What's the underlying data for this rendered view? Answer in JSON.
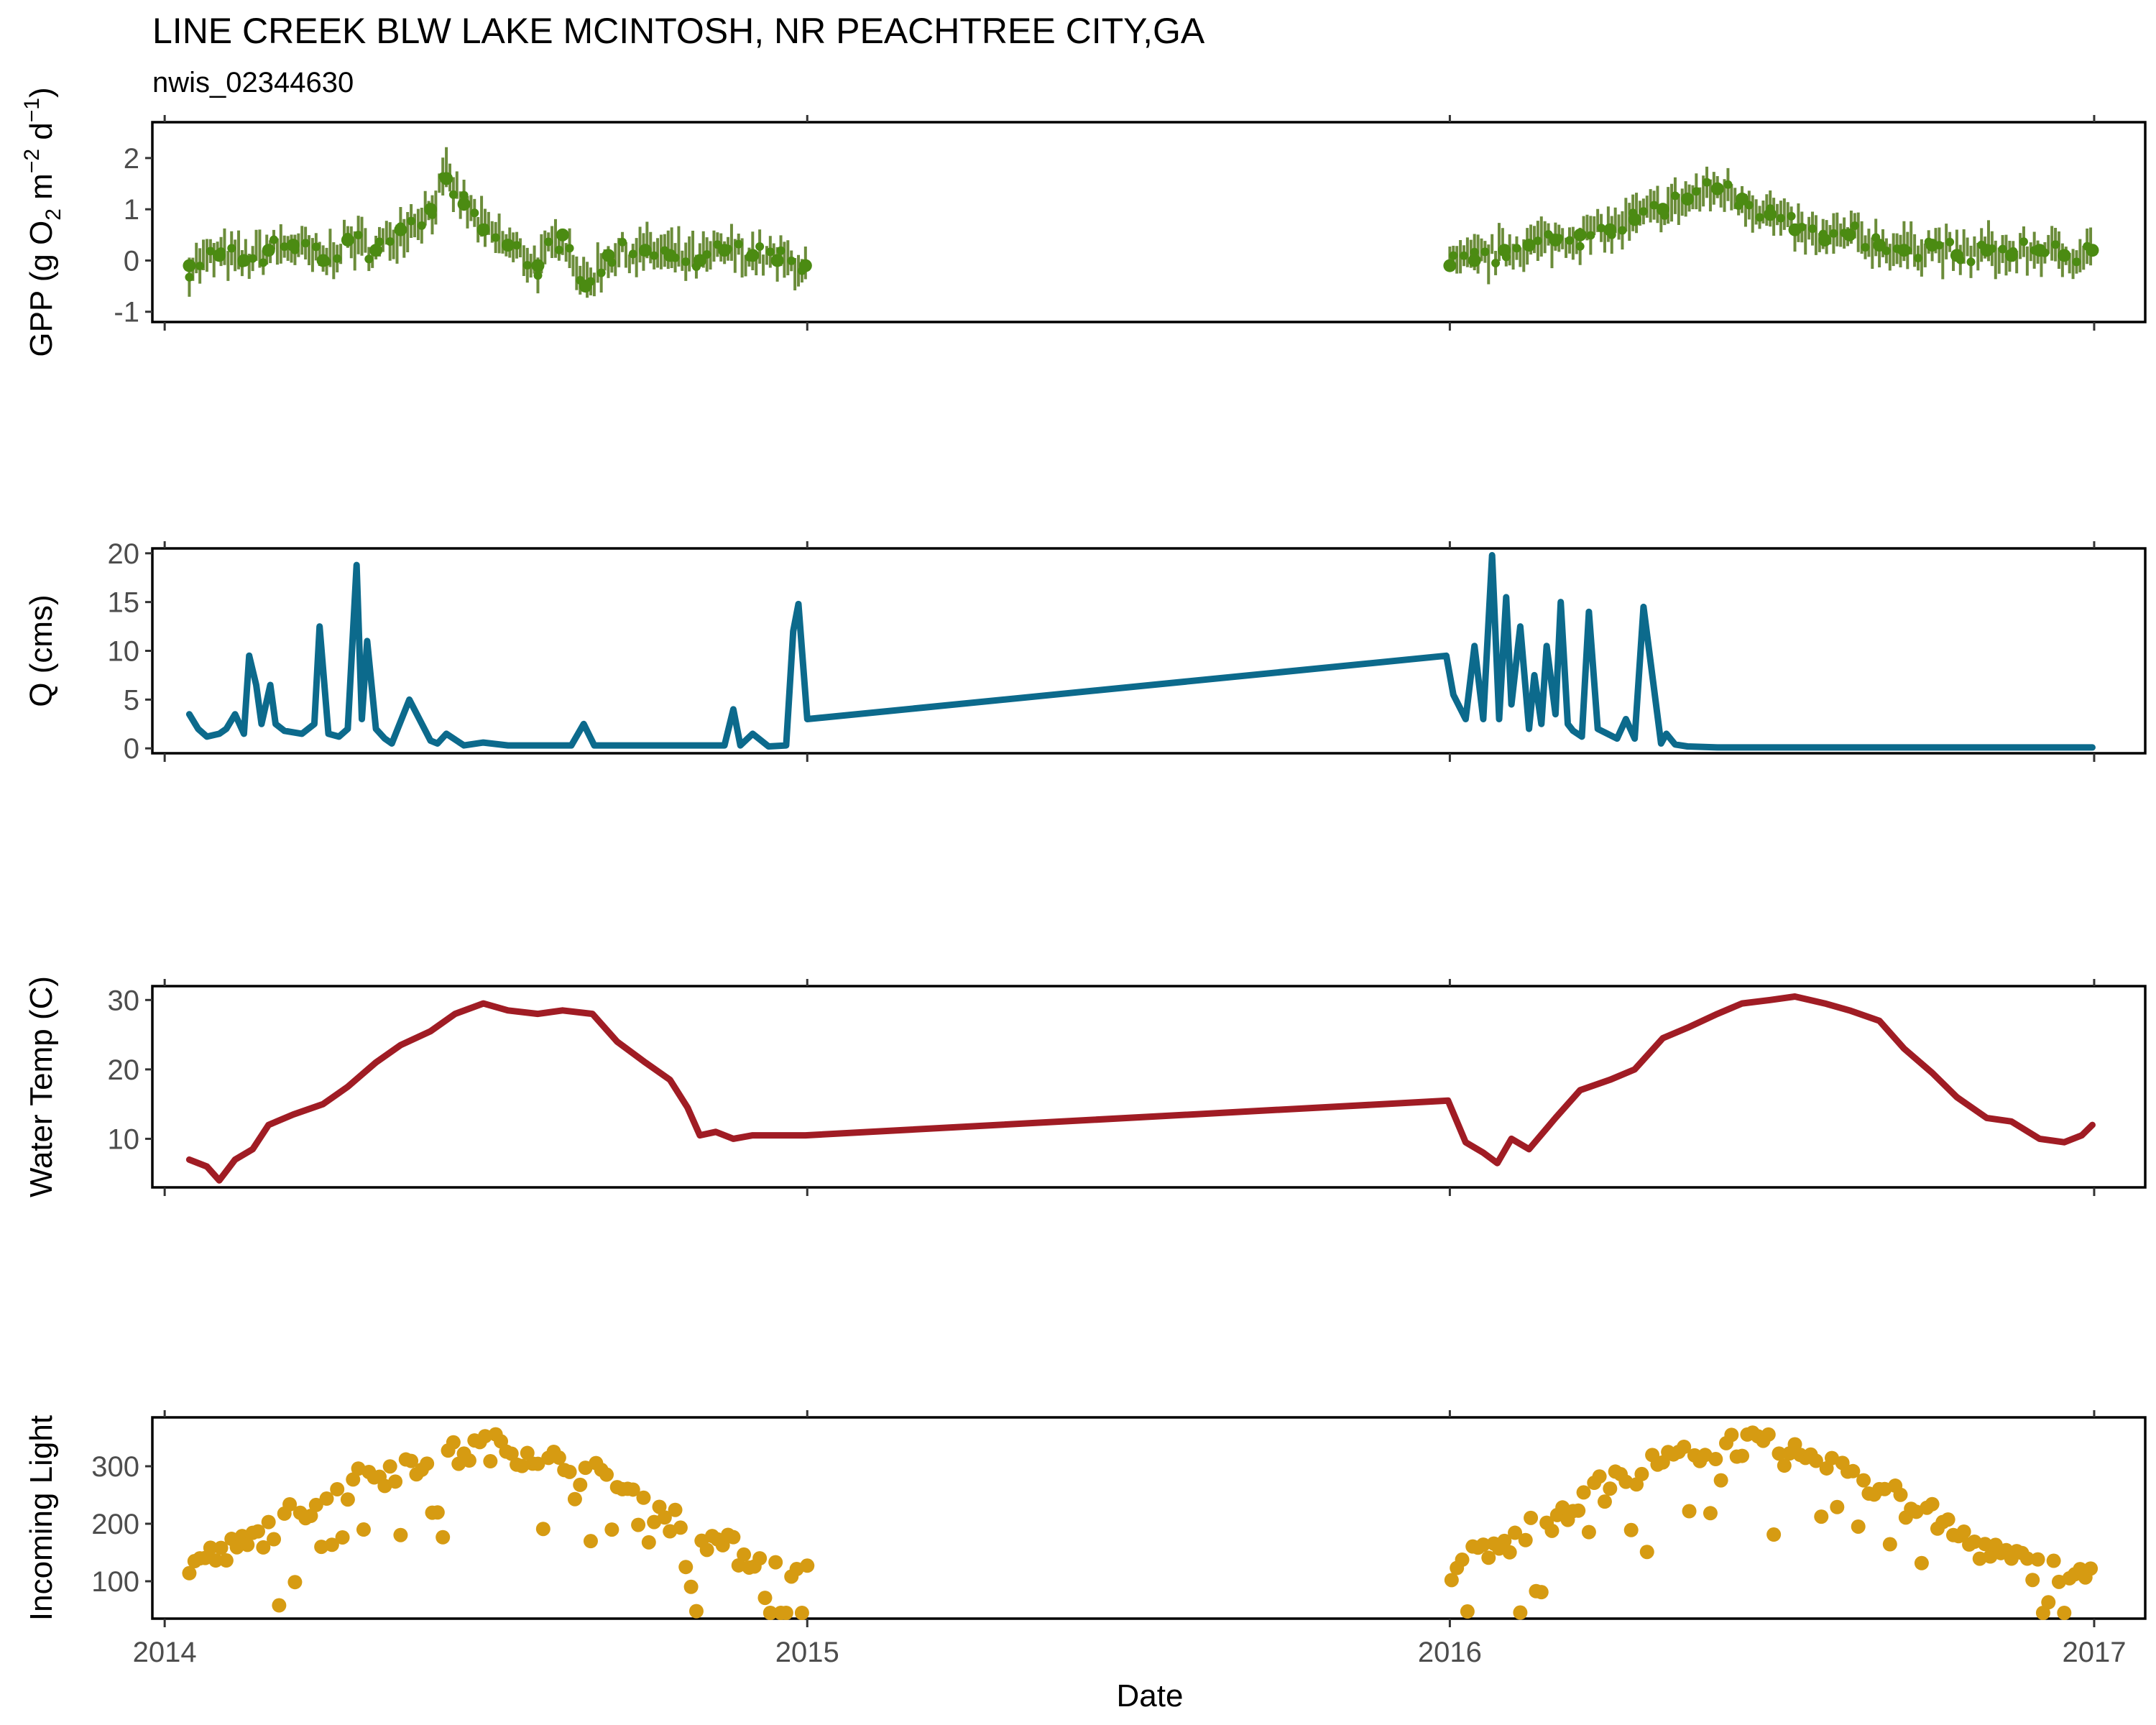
{
  "title": "LINE CREEK BLW LAKE MCINTOSH, NR PEACHTREE CITY,GA",
  "subtitle": "nwis_02344630",
  "xlabel": "Date",
  "x_ticks": [
    "2014",
    "2015",
    "2016",
    "2017"
  ],
  "colors": {
    "gpp": "#4b8b12",
    "gpp_band": "#6b8c3a",
    "q": "#0c6a8c",
    "temp": "#a01c24",
    "light": "#d69b12"
  },
  "chart_data": [
    {
      "type": "scatter",
      "name": "gpp",
      "ylabel": "GPP (g O2 m-2 d-1)",
      "ylabel_parts": {
        "lead": "GPP (g  O",
        "sub": "2",
        "mid": " m",
        "sup1": "−2",
        "mid2": " d",
        "sup2": "−1",
        "tail": ")"
      },
      "y_ticks": [
        "-1",
        "0",
        "1",
        "2"
      ],
      "ylim": [
        -1.2,
        2.7
      ],
      "x_range": [
        "2014-01-15",
        "2016-12-31"
      ],
      "gaps": [
        [
          "2015-01-01",
          "2016-01-01"
        ]
      ],
      "error_bars": true,
      "x": [
        "2014-01-15",
        "2014-02-01",
        "2014-02-15",
        "2014-03-01",
        "2014-03-15",
        "2014-04-01",
        "2014-04-15",
        "2014-05-01",
        "2014-05-15",
        "2014-06-01",
        "2014-06-10",
        "2014-06-20",
        "2014-07-01",
        "2014-07-15",
        "2014-08-01",
        "2014-08-15",
        "2014-08-28",
        "2014-09-10",
        "2014-10-01",
        "2014-10-15",
        "2014-11-01",
        "2014-11-15",
        "2014-12-01",
        "2014-12-15",
        "2014-12-31",
        "2016-01-01",
        "2016-01-15",
        "2016-02-01",
        "2016-02-15",
        "2016-03-01",
        "2016-03-15",
        "2016-04-01",
        "2016-04-15",
        "2016-05-01",
        "2016-05-15",
        "2016-06-01",
        "2016-06-15",
        "2016-07-01",
        "2016-07-15",
        "2016-08-01",
        "2016-08-15",
        "2016-09-01",
        "2016-09-15",
        "2016-10-01",
        "2016-10-15",
        "2016-11-01",
        "2016-11-15",
        "2016-12-01",
        "2016-12-15",
        "2016-12-31"
      ],
      "y": [
        -0.1,
        0.1,
        0.0,
        0.2,
        0.3,
        0.0,
        0.4,
        0.2,
        0.6,
        1.0,
        1.6,
        1.1,
        0.6,
        0.3,
        -0.1,
        0.5,
        -0.5,
        0.1,
        0.2,
        0.1,
        0.0,
        0.2,
        0.1,
        0.0,
        -0.1,
        -0.1,
        0.0,
        0.2,
        0.3,
        0.4,
        0.5,
        0.6,
        0.8,
        1.0,
        1.2,
        1.4,
        1.2,
        0.9,
        0.6,
        0.4,
        0.5,
        0.3,
        0.2,
        0.3,
        0.1,
        0.2,
        0.1,
        0.2,
        0.1,
        0.2
      ]
    },
    {
      "type": "line",
      "name": "q",
      "ylabel": "Q (cms)",
      "y_ticks": [
        "0",
        "5",
        "10",
        "15",
        "20"
      ],
      "ylim": [
        -0.5,
        20.5
      ],
      "x_range": [
        "2014-01-15",
        "2016-12-31"
      ],
      "x": [
        "2014-01-15",
        "2014-01-20",
        "2014-01-25",
        "2014-02-01",
        "2014-02-05",
        "2014-02-10",
        "2014-02-15",
        "2014-02-18",
        "2014-02-22",
        "2014-02-25",
        "2014-03-02",
        "2014-03-05",
        "2014-03-10",
        "2014-03-20",
        "2014-03-27",
        "2014-03-30",
        "2014-04-04",
        "2014-04-10",
        "2014-04-15",
        "2014-04-20",
        "2014-04-23",
        "2014-04-26",
        "2014-05-01",
        "2014-05-06",
        "2014-05-10",
        "2014-05-20",
        "2014-06-01",
        "2014-06-05",
        "2014-06-10",
        "2014-06-20",
        "2014-07-01",
        "2014-07-15",
        "2014-08-01",
        "2014-08-20",
        "2014-08-27",
        "2014-09-02",
        "2014-09-10",
        "2014-10-01",
        "2014-11-15",
        "2014-11-20",
        "2014-11-24",
        "2014-12-01",
        "2014-12-10",
        "2014-12-20",
        "2014-12-24",
        "2014-12-27",
        "2015-01-01",
        "2015-12-30",
        "2016-01-03",
        "2016-01-10",
        "2016-01-15",
        "2016-01-20",
        "2016-01-25",
        "2016-01-29",
        "2016-02-02",
        "2016-02-05",
        "2016-02-10",
        "2016-02-15",
        "2016-02-18",
        "2016-02-22",
        "2016-02-25",
        "2016-03-01",
        "2016-03-04",
        "2016-03-08",
        "2016-03-11",
        "2016-03-16",
        "2016-03-20",
        "2016-03-25",
        "2016-04-05",
        "2016-04-10",
        "2016-04-15",
        "2016-04-20",
        "2016-04-30",
        "2016-05-03",
        "2016-05-08",
        "2016-05-15",
        "2016-06-01",
        "2016-07-01",
        "2016-09-01",
        "2016-11-01",
        "2016-12-31"
      ],
      "y": [
        3.5,
        2.0,
        1.2,
        1.5,
        2.0,
        3.5,
        1.5,
        9.5,
        6.5,
        2.5,
        6.5,
        2.5,
        1.8,
        1.5,
        2.5,
        12.5,
        1.5,
        1.2,
        2.0,
        18.8,
        3.0,
        11.0,
        2.0,
        1.0,
        0.5,
        5.0,
        0.8,
        0.5,
        1.5,
        0.3,
        0.6,
        0.3,
        0.3,
        0.3,
        2.5,
        0.3,
        0.3,
        0.3,
        0.3,
        4.0,
        0.3,
        1.5,
        0.2,
        0.3,
        12.0,
        14.8,
        3.0,
        9.5,
        5.5,
        3.0,
        10.5,
        3.0,
        19.8,
        3.0,
        15.5,
        4.5,
        12.5,
        2.0,
        7.5,
        2.5,
        10.5,
        3.5,
        15.0,
        2.5,
        1.8,
        1.2,
        14.0,
        2.0,
        1.0,
        3.0,
        1.0,
        14.5,
        0.5,
        1.5,
        0.4,
        0.2,
        0.1,
        0.1,
        0.1,
        0.1,
        0.1
      ]
    },
    {
      "type": "line",
      "name": "temp",
      "ylabel": "Water Temp (C)",
      "y_ticks": [
        "10",
        "20",
        "30"
      ],
      "ylim": [
        3,
        32
      ],
      "x_range": [
        "2014-01-15",
        "2016-12-31"
      ],
      "x": [
        "2014-01-15",
        "2014-01-25",
        "2014-02-01",
        "2014-02-10",
        "2014-02-20",
        "2014-03-01",
        "2014-03-15",
        "2014-04-01",
        "2014-04-15",
        "2014-05-01",
        "2014-05-15",
        "2014-06-01",
        "2014-06-15",
        "2014-07-01",
        "2014-07-15",
        "2014-08-01",
        "2014-08-15",
        "2014-09-01",
        "2014-09-15",
        "2014-10-01",
        "2014-10-15",
        "2014-10-25",
        "2014-11-01",
        "2014-11-10",
        "2014-11-20",
        "2014-12-01",
        "2014-12-15",
        "2014-12-31",
        "2015-12-31",
        "2016-01-10",
        "2016-01-20",
        "2016-01-28",
        "2016-02-05",
        "2016-02-15",
        "2016-03-01",
        "2016-03-15",
        "2016-04-01",
        "2016-04-15",
        "2016-05-01",
        "2016-05-15",
        "2016-06-01",
        "2016-06-15",
        "2016-07-01",
        "2016-07-15",
        "2016-08-01",
        "2016-08-15",
        "2016-09-01",
        "2016-09-15",
        "2016-10-01",
        "2016-10-15",
        "2016-11-01",
        "2016-11-15",
        "2016-12-01",
        "2016-12-15",
        "2016-12-25",
        "2016-12-31"
      ],
      "y": [
        7.0,
        6.0,
        4.0,
        7.0,
        8.5,
        12.0,
        13.5,
        15.0,
        17.5,
        21.0,
        23.5,
        25.5,
        28.0,
        29.5,
        28.5,
        28.0,
        28.5,
        28.0,
        24.0,
        21.0,
        18.5,
        14.5,
        10.5,
        11.0,
        10.0,
        10.5,
        10.5,
        10.5,
        15.5,
        9.5,
        8.0,
        6.5,
        10.0,
        8.5,
        13.0,
        17.0,
        18.5,
        20.0,
        24.5,
        26.0,
        28.0,
        29.5,
        30.0,
        30.5,
        29.5,
        28.5,
        27.0,
        23.0,
        19.5,
        16.0,
        13.0,
        12.5,
        10.0,
        9.5,
        10.5,
        12.0
      ]
    },
    {
      "type": "scatter",
      "name": "light",
      "ylabel": "Incoming Light",
      "y_ticks": [
        "100",
        "200",
        "300"
      ],
      "ylim": [
        35,
        385
      ],
      "x_range": [
        "2014-01-15",
        "2016-12-31"
      ],
      "gaps": [
        [
          "2015-01-01",
          "2016-01-01"
        ]
      ],
      "x": [
        "2014-01-15",
        "2014-02-01",
        "2014-02-15",
        "2014-03-01",
        "2014-03-15",
        "2014-04-01",
        "2014-04-15",
        "2014-05-01",
        "2014-05-15",
        "2014-06-01",
        "2014-06-15",
        "2014-07-01",
        "2014-07-15",
        "2014-08-01",
        "2014-08-15",
        "2014-09-01",
        "2014-09-15",
        "2014-10-01",
        "2014-10-15",
        "2014-11-01",
        "2014-11-15",
        "2014-12-01",
        "2014-12-15",
        "2014-12-31",
        "2016-01-01",
        "2016-01-15",
        "2016-02-01",
        "2016-02-15",
        "2016-03-01",
        "2016-03-15",
        "2016-04-01",
        "2016-04-15",
        "2016-05-01",
        "2016-05-15",
        "2016-06-01",
        "2016-06-15",
        "2016-07-01",
        "2016-07-15",
        "2016-08-01",
        "2016-08-15",
        "2016-09-01",
        "2016-09-15",
        "2016-10-01",
        "2016-10-15",
        "2016-11-01",
        "2016-11-15",
        "2016-12-01",
        "2016-12-15",
        "2016-12-31"
      ],
      "y": [
        130,
        145,
        160,
        190,
        220,
        245,
        265,
        285,
        300,
        315,
        320,
        335,
        330,
        320,
        300,
        285,
        265,
        235,
        210,
        185,
        160,
        140,
        120,
        110,
        120,
        140,
        160,
        190,
        215,
        245,
        265,
        290,
        305,
        320,
        335,
        340,
        330,
        320,
        305,
        285,
        265,
        235,
        210,
        180,
        155,
        135,
        120,
        115,
        125
      ]
    }
  ]
}
